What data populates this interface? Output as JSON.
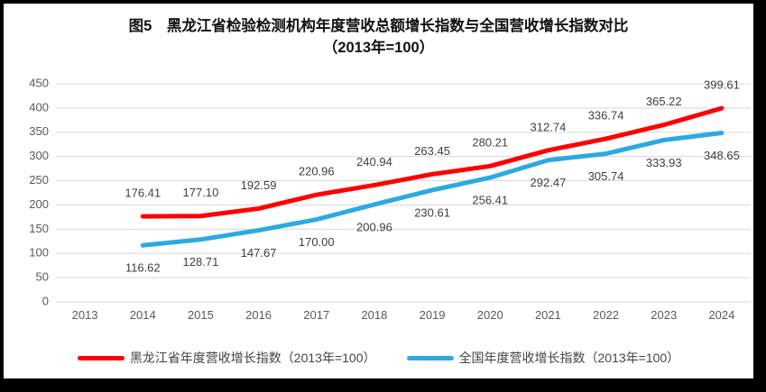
{
  "figure": {
    "title_line1": "图5　黑龙江省检验检测机构年度营收总额增长指数与全国营收增长指数对比",
    "title_line2": "（2013年=100）"
  },
  "chart_data": {
    "type": "line",
    "title": "图5 黑龙江省检验检测机构年度营收总额增长指数与全国营收增长指数对比（2013年=100）",
    "categories": [
      "2013",
      "2014",
      "2015",
      "2016",
      "2017",
      "2018",
      "2019",
      "2020",
      "2021",
      "2022",
      "2023",
      "2024"
    ],
    "series": [
      {
        "key": "heilongjiang",
        "name": "黑龙江省年度营收增长指数（2013年=100）",
        "color": "#FF0000",
        "label_position": "above",
        "values": [
          null,
          176.41,
          177.1,
          192.59,
          220.96,
          240.94,
          263.45,
          280.21,
          312.74,
          336.74,
          365.22,
          399.61
        ],
        "labels": [
          "",
          "176.41",
          "177.10",
          "192.59",
          "220.96",
          "240.94",
          "263.45",
          "280.21",
          "312.74",
          "336.74",
          "365.22",
          "399.61"
        ]
      },
      {
        "key": "national",
        "name": "全国年度营收增长指数（2013年=100）",
        "color": "#2CA9E1",
        "label_position": "below",
        "values": [
          null,
          116.62,
          128.71,
          147.67,
          170.0,
          200.96,
          230.61,
          256.41,
          292.47,
          305.74,
          333.93,
          348.65
        ],
        "labels": [
          "",
          "116.62",
          "128.71",
          "147.67",
          "170.00",
          "200.96",
          "230.61",
          "256.41",
          "292.47",
          "305.74",
          "333.93",
          "348.65"
        ]
      }
    ],
    "xlabel": "",
    "ylabel": "",
    "ylim": [
      0,
      450
    ],
    "yticks": [
      0,
      50,
      100,
      150,
      200,
      250,
      300,
      350,
      400,
      450
    ],
    "grid": "horizontal",
    "legend_position": "bottom",
    "colors": {
      "gridline": "#D9D9D9",
      "axis_text": "#595959",
      "data_label": "#404040"
    }
  }
}
